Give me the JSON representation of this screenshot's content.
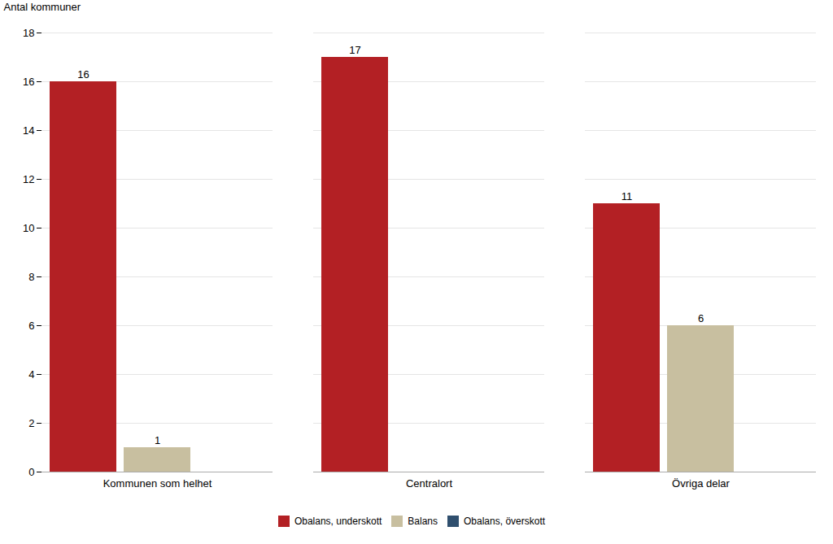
{
  "chart_data": {
    "type": "bar",
    "ylabel": "Antal kommuner",
    "categories": [
      "Kommunen som helhet",
      "Centralort",
      "Övriga delar"
    ],
    "series": [
      {
        "name": "Obalans, underskott",
        "color": "#b32024",
        "values": [
          16,
          17,
          11
        ]
      },
      {
        "name": "Balans",
        "color": "#c8bfa0",
        "values": [
          1,
          0,
          6
        ]
      },
      {
        "name": "Obalans, överskott",
        "color": "#2f4f6e",
        "values": [
          0,
          0,
          0
        ]
      }
    ],
    "ylim": [
      0,
      18
    ],
    "yticks": [
      0,
      2,
      4,
      6,
      8,
      10,
      12,
      14,
      16,
      18
    ],
    "grid": true,
    "legend": "bottom",
    "data_labels": true
  }
}
